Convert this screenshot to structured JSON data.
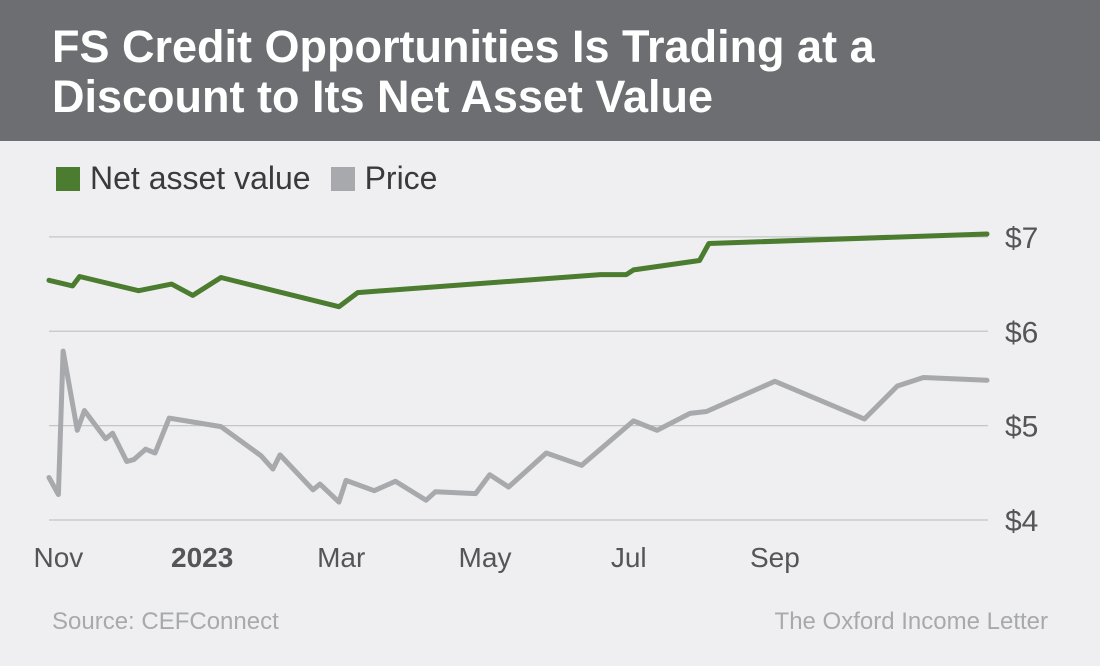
{
  "title": "FS Credit Opportunities Is Trading at a\nDiscount to Its Net Asset Value",
  "legend": [
    {
      "label": "Net asset value",
      "color": "#4b7c2f"
    },
    {
      "label": "Price",
      "color": "#a7a9ac"
    }
  ],
  "source": "Source: CEFConnect",
  "credit": "The Oxford Income Letter",
  "chart_data": {
    "type": "line",
    "title": "FS Credit Opportunities Is Trading at a Discount to Its Net Asset Value",
    "xlabel": "",
    "ylabel": "",
    "xlim": [
      "2022-10-28",
      "2023-11-30"
    ],
    "ylim": [
      4,
      7.2
    ],
    "y_ticks": [
      {
        "value": 7,
        "label": "$7"
      },
      {
        "value": 6,
        "label": "$6"
      },
      {
        "value": 5,
        "label": "$5"
      },
      {
        "value": 4,
        "label": "$4"
      }
    ],
    "x_ticks": [
      {
        "date": "2022-11-01",
        "label": "Nov",
        "bold": false
      },
      {
        "date": "2023-01-01",
        "label": "2023",
        "bold": true
      },
      {
        "date": "2023-03-01",
        "label": "Mar",
        "bold": false
      },
      {
        "date": "2023-05-01",
        "label": "May",
        "bold": false
      },
      {
        "date": "2023-07-01",
        "label": "Jul",
        "bold": false
      },
      {
        "date": "2023-09-01",
        "label": "Sep",
        "bold": false
      }
    ],
    "grid": true,
    "legend_position": "top-left",
    "series": [
      {
        "name": "Net asset value",
        "color": "#4b7c2f",
        "points": [
          [
            "2022-10-28",
            6.54
          ],
          [
            "2022-11-07",
            6.48
          ],
          [
            "2022-11-10",
            6.58
          ],
          [
            "2022-12-05",
            6.43
          ],
          [
            "2022-12-19",
            6.5
          ],
          [
            "2022-12-28",
            6.38
          ],
          [
            "2023-01-09",
            6.57
          ],
          [
            "2023-02-28",
            6.26
          ],
          [
            "2023-03-08",
            6.41
          ],
          [
            "2023-06-19",
            6.6
          ],
          [
            "2023-06-30",
            6.6
          ],
          [
            "2023-07-03",
            6.65
          ],
          [
            "2023-07-31",
            6.75
          ],
          [
            "2023-08-04",
            6.93
          ],
          [
            "2023-11-30",
            7.03
          ]
        ]
      },
      {
        "name": "Price",
        "color": "#a7a9ac",
        "points": [
          [
            "2022-10-28",
            4.45
          ],
          [
            "2022-11-01",
            4.27
          ],
          [
            "2022-11-03",
            5.79
          ],
          [
            "2022-11-09",
            4.95
          ],
          [
            "2022-11-12",
            5.16
          ],
          [
            "2022-11-21",
            4.86
          ],
          [
            "2022-11-24",
            4.92
          ],
          [
            "2022-11-30",
            4.62
          ],
          [
            "2022-12-03",
            4.64
          ],
          [
            "2022-12-08",
            4.75
          ],
          [
            "2022-12-12",
            4.71
          ],
          [
            "2022-12-18",
            5.08
          ],
          [
            "2023-01-09",
            4.99
          ],
          [
            "2023-01-26",
            4.68
          ],
          [
            "2023-01-31",
            4.54
          ],
          [
            "2023-02-03",
            4.69
          ],
          [
            "2023-02-17",
            4.32
          ],
          [
            "2023-02-20",
            4.38
          ],
          [
            "2023-02-28",
            4.19
          ],
          [
            "2023-03-03",
            4.42
          ],
          [
            "2023-03-15",
            4.31
          ],
          [
            "2023-03-24",
            4.41
          ],
          [
            "2023-04-06",
            4.21
          ],
          [
            "2023-04-10",
            4.3
          ],
          [
            "2023-04-27",
            4.28
          ],
          [
            "2023-05-03",
            4.48
          ],
          [
            "2023-05-11",
            4.35
          ],
          [
            "2023-05-27",
            4.71
          ],
          [
            "2023-06-11",
            4.58
          ],
          [
            "2023-07-03",
            5.05
          ],
          [
            "2023-07-13",
            4.95
          ],
          [
            "2023-07-27",
            5.13
          ],
          [
            "2023-08-03",
            5.15
          ],
          [
            "2023-09-01",
            5.47
          ],
          [
            "2023-10-09",
            5.07
          ],
          [
            "2023-10-23",
            5.42
          ],
          [
            "2023-11-03",
            5.51
          ],
          [
            "2023-11-30",
            5.48
          ]
        ]
      }
    ]
  }
}
